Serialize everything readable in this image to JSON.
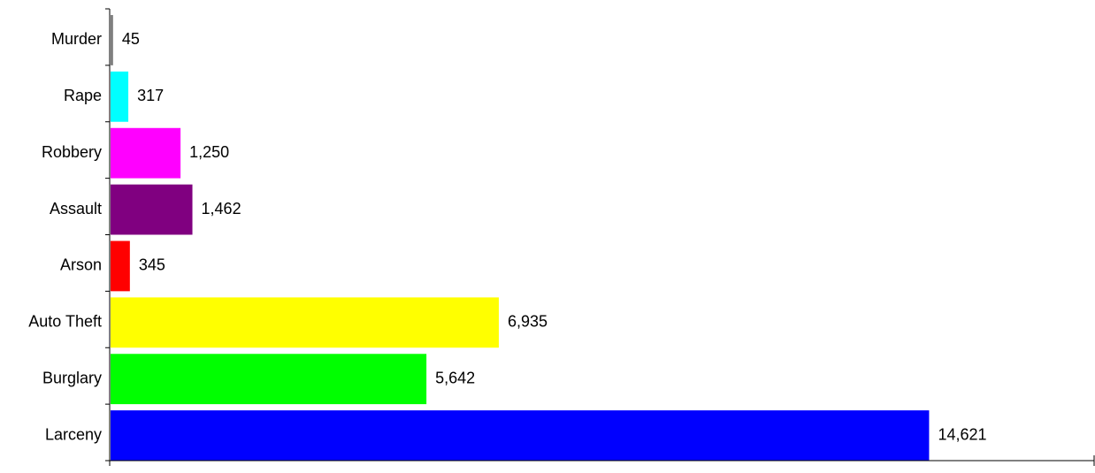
{
  "chart_data": {
    "type": "bar",
    "orientation": "horizontal",
    "title": "",
    "xlabel": "",
    "ylabel": "",
    "categories": [
      "Murder",
      "Rape",
      "Robbery",
      "Assault",
      "Arson",
      "Auto Theft",
      "Burglary",
      "Larceny"
    ],
    "values": [
      45,
      317,
      1250,
      1462,
      345,
      6935,
      5642,
      14621
    ],
    "value_labels": [
      "45",
      "317",
      "1,250",
      "1,462",
      "345",
      "6,935",
      "5,642",
      "14,621"
    ],
    "colors": [
      "#7f7f7f",
      "#00ffff",
      "#ff00ff",
      "#800080",
      "#ff0000",
      "#ffff00",
      "#00ff00",
      "#0000ff"
    ],
    "xlim": [
      0,
      17600
    ],
    "grid": false,
    "legend": "none"
  }
}
